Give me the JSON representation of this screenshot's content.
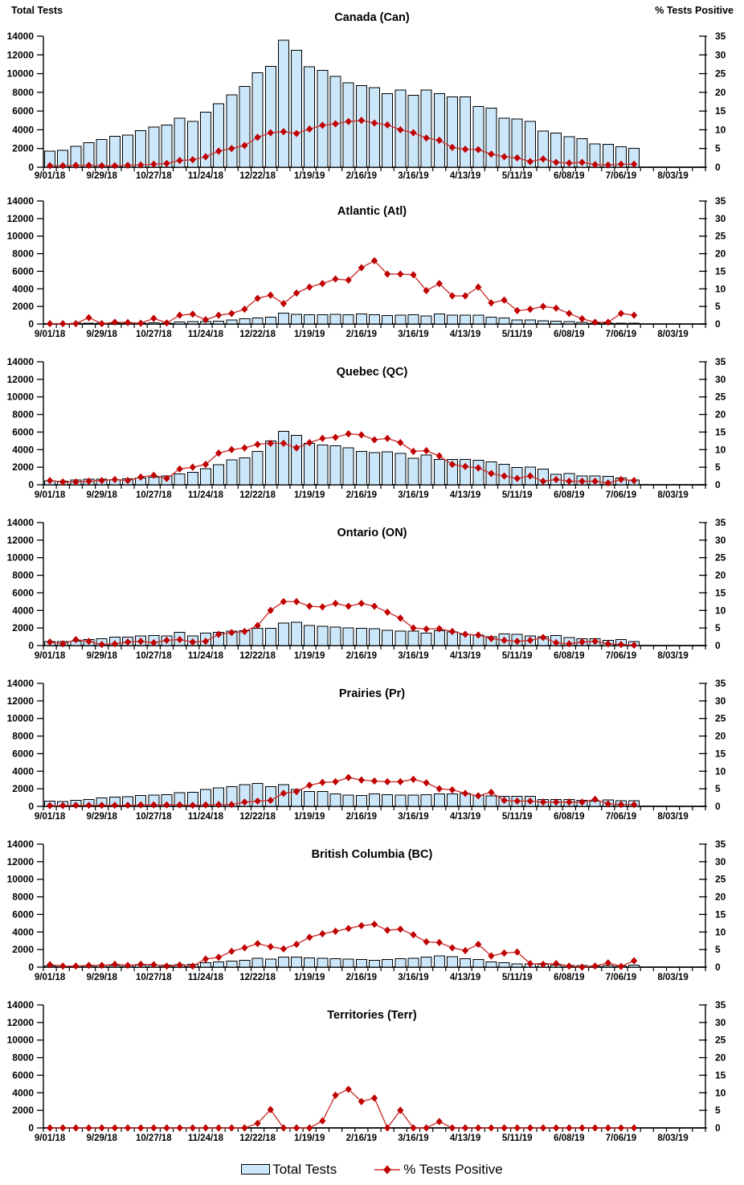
{
  "page": {
    "background": "#ffffff"
  },
  "colors": {
    "bar_fill": "#CDE7FA",
    "bar_border": "#000000",
    "line": "#CC3333",
    "marker": "#C00000",
    "text": "#000000"
  },
  "legend": {
    "total_tests_label": "Total Tests",
    "pct_positive_label": "% Tests Positive"
  },
  "axis": {
    "left_title": "Total Tests",
    "right_title": "% Tests Positive",
    "left_range": [
      0,
      14000
    ],
    "left_tick_step": 2000,
    "left_ticks": [
      0,
      2000,
      4000,
      6000,
      8000,
      10000,
      12000,
      14000
    ],
    "right_range": [
      0,
      35
    ],
    "right_tick_step": 5,
    "right_ticks": [
      0,
      5,
      10,
      15,
      20,
      25,
      30,
      35
    ],
    "x_tick_labels": [
      "9/01/18",
      "9/29/18",
      "10/27/18",
      "11/24/18",
      "12/22/18",
      "1/19/19",
      "2/16/19",
      "3/16/19",
      "4/13/19",
      "5/11/19",
      "6/08/19",
      "7/06/19",
      "8/03/19"
    ],
    "x_label_weeks": [
      0,
      4,
      8,
      12,
      16,
      20,
      24,
      28,
      32,
      36,
      40,
      44,
      48
    ],
    "n_data_weeks": 46,
    "n_axis_weeks": 51,
    "grid": false
  },
  "chart_data": [
    {
      "id": "canada-can",
      "type": "bar",
      "title": "Canada (Can)",
      "series": [
        {
          "name": "Total Tests",
          "axis": "left",
          "kind": "bar",
          "values": [
            1700,
            1800,
            2250,
            2600,
            2950,
            3300,
            3450,
            3900,
            4300,
            4500,
            5250,
            4900,
            5900,
            6800,
            7750,
            8650,
            10100,
            10800,
            13550,
            12500,
            10750,
            10350,
            9700,
            9000,
            8700,
            8500,
            7850,
            8250,
            7700,
            8250,
            7850,
            7500,
            7500,
            6500,
            6300,
            5250,
            5150,
            4900,
            3850,
            3650,
            3250,
            3050,
            2500,
            2450,
            2200,
            2000
          ]
        },
        {
          "name": "% Tests Positive",
          "axis": "right",
          "kind": "line",
          "values": [
            0.4,
            0.4,
            0.5,
            0.5,
            0.4,
            0.4,
            0.5,
            0.6,
            0.8,
            1.0,
            1.8,
            2.0,
            2.8,
            4.3,
            5.0,
            5.8,
            8.0,
            9.2,
            9.5,
            9.0,
            10.2,
            11.2,
            11.6,
            12.2,
            12.5,
            11.8,
            11.3,
            10.0,
            9.2,
            7.8,
            7.2,
            5.3,
            4.8,
            4.7,
            3.5,
            2.8,
            2.5,
            1.5,
            2.2,
            1.3,
            1.1,
            1.3,
            0.7,
            0.6,
            0.8,
            0.8
          ]
        }
      ]
    },
    {
      "id": "atlantic-atl",
      "type": "bar",
      "title": "Atlantic (Atl)",
      "series": [
        {
          "name": "Total Tests",
          "axis": "left",
          "kind": "bar",
          "values": [
            60,
            60,
            70,
            80,
            80,
            90,
            90,
            100,
            150,
            110,
            250,
            260,
            260,
            310,
            450,
            600,
            700,
            760,
            1250,
            1100,
            1050,
            1060,
            1100,
            1050,
            1150,
            1060,
            950,
            1000,
            1050,
            900,
            1150,
            1000,
            1000,
            990,
            760,
            700,
            460,
            450,
            350,
            300,
            260,
            200,
            110,
            90,
            90,
            90
          ]
        },
        {
          "name": "% Tests Positive",
          "axis": "right",
          "kind": "line",
          "values": [
            0.1,
            0.1,
            0.1,
            1.8,
            0.1,
            0.5,
            0.4,
            0.2,
            1.6,
            0.3,
            2.5,
            2.8,
            1.2,
            2.5,
            3.0,
            4.2,
            7.3,
            8.2,
            5.8,
            8.8,
            10.5,
            11.5,
            12.8,
            12.5,
            16.0,
            18.0,
            14.2,
            14.2,
            14.0,
            9.5,
            11.5,
            8.0,
            8.0,
            10.5,
            6.0,
            6.8,
            3.8,
            4.2,
            5.0,
            4.5,
            3.0,
            1.5,
            0.5,
            0.5,
            3.0,
            2.5
          ]
        }
      ]
    },
    {
      "id": "quebec-qc",
      "type": "bar",
      "title": "Quebec (QC)",
      "series": [
        {
          "name": "Total Tests",
          "axis": "left",
          "kind": "bar",
          "values": [
            450,
            400,
            550,
            650,
            650,
            600,
            700,
            800,
            850,
            1000,
            1250,
            1400,
            1850,
            2300,
            2850,
            3050,
            3800,
            5000,
            6100,
            5650,
            4700,
            4550,
            4450,
            4200,
            3800,
            3650,
            3750,
            3550,
            3000,
            3400,
            2900,
            2900,
            2900,
            2800,
            2600,
            2350,
            1950,
            2000,
            1800,
            1200,
            1300,
            1000,
            1000,
            950,
            800,
            550
          ]
        },
        {
          "name": "% Tests Positive",
          "axis": "right",
          "kind": "line",
          "values": [
            1.2,
            0.8,
            0.8,
            1.0,
            1.2,
            1.5,
            1.2,
            2.2,
            2.7,
            1.8,
            4.5,
            5.0,
            5.8,
            9.0,
            10.0,
            10.5,
            11.5,
            11.8,
            11.8,
            10.5,
            12.0,
            13.2,
            13.5,
            14.5,
            14.2,
            12.8,
            13.2,
            12.0,
            9.5,
            9.7,
            8.2,
            5.8,
            5.2,
            4.8,
            3.2,
            2.5,
            1.8,
            2.5,
            1.0,
            1.5,
            1.0,
            1.0,
            1.0,
            0.5,
            1.5,
            1.2
          ]
        }
      ]
    },
    {
      "id": "ontario-on",
      "type": "bar",
      "title": "Ontario (ON)",
      "series": [
        {
          "name": "Total Tests",
          "axis": "left",
          "kind": "bar",
          "values": [
            450,
            450,
            500,
            700,
            800,
            950,
            950,
            1100,
            1150,
            1100,
            1500,
            1100,
            1400,
            1500,
            1650,
            1700,
            1950,
            1950,
            2550,
            2650,
            2300,
            2200,
            2100,
            2000,
            1950,
            1900,
            1750,
            1650,
            1650,
            1400,
            1700,
            1550,
            1300,
            1200,
            1000,
            1350,
            1300,
            1100,
            1000,
            1150,
            900,
            800,
            800,
            600,
            700,
            450
          ]
        },
        {
          "name": "% Tests Positive",
          "axis": "right",
          "kind": "line",
          "values": [
            1.0,
            0.5,
            1.7,
            1.2,
            0.3,
            0.5,
            1.0,
            1.2,
            0.8,
            1.5,
            1.7,
            1.0,
            1.2,
            3.2,
            3.7,
            4.0,
            5.7,
            10.0,
            12.5,
            12.5,
            11.2,
            11.0,
            12.0,
            11.2,
            12.0,
            11.2,
            9.5,
            7.8,
            5.0,
            4.7,
            4.8,
            4.0,
            3.2,
            3.0,
            2.0,
            1.5,
            1.2,
            1.5,
            2.3,
            0.8,
            0.5,
            1.0,
            1.2,
            0.5,
            0.3,
            0.1
          ]
        }
      ]
    },
    {
      "id": "prairies-pr",
      "type": "bar",
      "title": "Prairies (Pr)",
      "series": [
        {
          "name": "Total Tests",
          "axis": "left",
          "kind": "bar",
          "values": [
            600,
            550,
            700,
            800,
            950,
            1050,
            1100,
            1250,
            1300,
            1350,
            1550,
            1600,
            1900,
            2100,
            2250,
            2450,
            2600,
            2250,
            2450,
            1900,
            1700,
            1700,
            1400,
            1300,
            1250,
            1400,
            1350,
            1300,
            1300,
            1350,
            1400,
            1400,
            1450,
            1300,
            1200,
            1150,
            1150,
            1150,
            800,
            800,
            800,
            700,
            600,
            750,
            650,
            650
          ]
        },
        {
          "name": "% Tests Positive",
          "axis": "right",
          "kind": "line",
          "values": [
            0.2,
            0.2,
            0.3,
            0.3,
            0.3,
            0.3,
            0.3,
            0.4,
            0.4,
            0.4,
            0.4,
            0.3,
            0.4,
            0.5,
            0.5,
            1.2,
            1.5,
            1.7,
            3.7,
            4.2,
            6.0,
            6.8,
            7.0,
            8.2,
            7.5,
            7.2,
            7.0,
            7.0,
            7.7,
            6.7,
            5.0,
            4.7,
            3.7,
            3.0,
            4.0,
            1.7,
            1.5,
            1.5,
            1.2,
            1.2,
            1.2,
            1.2,
            2.0,
            0.7,
            0.5,
            0.5
          ]
        }
      ]
    },
    {
      "id": "british-columbia-bc",
      "type": "bar",
      "title": "British Columbia (BC)",
      "series": [
        {
          "name": "Total Tests",
          "axis": "left",
          "kind": "bar",
          "values": [
            150,
            120,
            130,
            150,
            180,
            180,
            200,
            230,
            250,
            250,
            280,
            300,
            500,
            600,
            700,
            800,
            1000,
            900,
            1150,
            1150,
            1050,
            1000,
            950,
            900,
            850,
            800,
            850,
            950,
            1000,
            1150,
            1300,
            1200,
            950,
            850,
            600,
            500,
            350,
            350,
            400,
            250,
            200,
            200,
            150,
            200,
            150,
            250
          ]
        },
        {
          "name": "% Tests Positive",
          "axis": "right",
          "kind": "line",
          "values": [
            0.7,
            0.3,
            0.3,
            0.5,
            0.5,
            0.8,
            0.5,
            0.8,
            0.7,
            0.3,
            0.6,
            0.3,
            2.3,
            2.8,
            4.5,
            5.5,
            6.7,
            5.8,
            5.2,
            6.5,
            8.5,
            9.5,
            10.2,
            11.0,
            11.8,
            12.2,
            10.5,
            10.8,
            9.2,
            7.2,
            7.0,
            5.5,
            4.7,
            6.5,
            3.2,
            4.0,
            4.3,
            1.0,
            0.8,
            1.0,
            0.3,
            0.0,
            0.3,
            1.2,
            0.2,
            1.8
          ]
        }
      ]
    },
    {
      "id": "territories-terr",
      "type": "bar",
      "title": "Territories (Terr)",
      "series": [
        {
          "name": "Total Tests",
          "axis": "left",
          "kind": "bar",
          "values": [
            0,
            0,
            0,
            0,
            0,
            0,
            0,
            0,
            0,
            0,
            0,
            0,
            0,
            0,
            0,
            0,
            0,
            0,
            0,
            0,
            0,
            0,
            0,
            0,
            0,
            0,
            0,
            0,
            0,
            0,
            0,
            0,
            0,
            0,
            0,
            0,
            0,
            0,
            0,
            0,
            0,
            0,
            0,
            0,
            0,
            0
          ]
        },
        {
          "name": "% Tests Positive",
          "axis": "right",
          "kind": "line",
          "values": [
            0,
            0,
            0,
            0,
            0,
            0,
            0,
            0,
            0,
            0,
            0,
            0,
            0,
            0,
            0,
            0,
            1.3,
            5.2,
            0,
            0,
            0,
            2.0,
            9.3,
            11.0,
            7.5,
            8.5,
            0,
            5.0,
            0,
            0,
            1.8,
            0,
            0,
            0,
            0,
            0,
            0,
            0,
            0,
            0,
            0,
            0,
            0,
            0,
            0,
            0
          ]
        }
      ]
    }
  ]
}
